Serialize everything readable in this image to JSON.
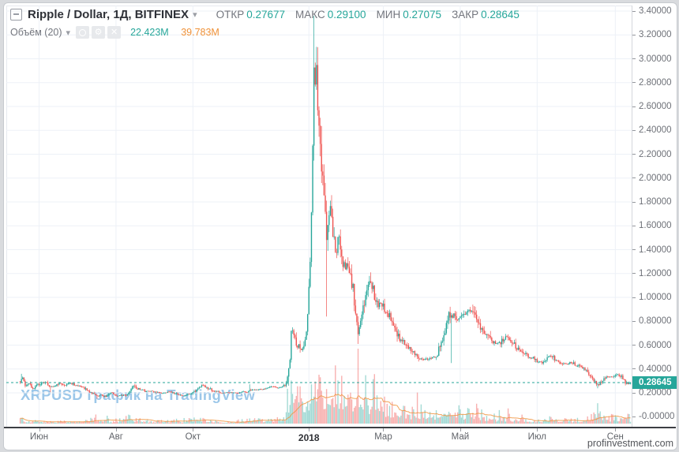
{
  "header": {
    "symbol_title": "Ripple / Dollar, 1Д, BITFINEX",
    "caret": "▾",
    "ohlc": {
      "open_label": "ОТКР",
      "open": "0.27677",
      "high_label": "МАКС",
      "high": "0.29100",
      "low_label": "МИН",
      "low": "0.27075",
      "close_label": "ЗАКР",
      "close": "0.28645"
    },
    "indicator": {
      "name": "Объём (20)",
      "caret": "▾",
      "icons": [
        "eye-icon",
        "gear-icon",
        "close-icon"
      ],
      "gear_glyph": "⚙",
      "close_glyph": "✕",
      "volume_value": "22.423M",
      "ma_value": "39.783M"
    }
  },
  "watermark_text": "XRPUSD график на TradingView",
  "footer_credit": "profinvestment.com",
  "price_scale": {
    "last_price_label": "0.28645",
    "last_price_value": 0.28645,
    "labels": [
      {
        "value": 3.4,
        "label": "3.40000"
      },
      {
        "value": 3.2,
        "label": "3.20000"
      },
      {
        "value": 3.0,
        "label": "3.00000"
      },
      {
        "value": 2.8,
        "label": "2.80000"
      },
      {
        "value": 2.6,
        "label": "2.60000"
      },
      {
        "value": 2.4,
        "label": "2.40000"
      },
      {
        "value": 2.2,
        "label": "2.20000"
      },
      {
        "value": 2.0,
        "label": "2.00000"
      },
      {
        "value": 1.8,
        "label": "1.80000"
      },
      {
        "value": 1.6,
        "label": "1.60000"
      },
      {
        "value": 1.4,
        "label": "1.40000"
      },
      {
        "value": 1.2,
        "label": "1.20000"
      },
      {
        "value": 1.0,
        "label": "1.00000"
      },
      {
        "value": 0.8,
        "label": "0.80000"
      },
      {
        "value": 0.6,
        "label": "0.60000"
      },
      {
        "value": 0.4,
        "label": "0.40000"
      },
      {
        "value": 0.2,
        "label": "0.20000"
      },
      {
        "value": 0.0,
        "label": "-0.00000"
      }
    ]
  },
  "time_scale": {
    "ticks": [
      {
        "label": "Июн",
        "day": 31,
        "bold": false
      },
      {
        "label": "Авг",
        "day": 92,
        "bold": false
      },
      {
        "label": "Окт",
        "day": 153,
        "bold": false
      },
      {
        "label": "2018",
        "day": 245,
        "bold": true
      },
      {
        "label": "Мар",
        "day": 304,
        "bold": false
      },
      {
        "label": "Май",
        "day": 365,
        "bold": false
      },
      {
        "label": "Июл",
        "day": 426,
        "bold": false
      },
      {
        "label": "Сен",
        "day": 488,
        "bold": false
      }
    ]
  },
  "colors": {
    "up": "#26a69a",
    "down": "#ef5350",
    "vol_up": "rgba(38,166,154,0.42)",
    "vol_down": "rgba(239,83,80,0.45)",
    "vol_ma_line": "#f0953f",
    "grid": "#edf1f7",
    "last_price_line": "#26a69a",
    "accent_teal": "#26a69a",
    "accent_orange": "#ef9138"
  },
  "chart_data": {
    "type": "candlestick_with_volume",
    "symbol": "XRPUSD",
    "interval": "1Д",
    "exchange": "BITFINEX",
    "title": "Ripple / Dollar, 1Д, BITFINEX",
    "ylim": [
      0.0,
      3.4
    ],
    "y_step": 0.2,
    "grid": true,
    "x_range_days": [
      0,
      500
    ],
    "first_candle_day": 16,
    "last_candle": {
      "open": 0.27677,
      "high": 0.291,
      "low": 0.27075,
      "close": 0.28645
    },
    "price_keyframes_day_close": [
      [
        16,
        0.3
      ],
      [
        18,
        0.33
      ],
      [
        20,
        0.26
      ],
      [
        23,
        0.28
      ],
      [
        26,
        0.24
      ],
      [
        29,
        0.26
      ],
      [
        31,
        0.27
      ],
      [
        34,
        0.29
      ],
      [
        36,
        0.285
      ],
      [
        40,
        0.25
      ],
      [
        44,
        0.255
      ],
      [
        48,
        0.28
      ],
      [
        52,
        0.26
      ],
      [
        56,
        0.28
      ],
      [
        61,
        0.26
      ],
      [
        66,
        0.25
      ],
      [
        70,
        0.21
      ],
      [
        75,
        0.19
      ],
      [
        78,
        0.17
      ],
      [
        80,
        0.18
      ],
      [
        84,
        0.17
      ],
      [
        88,
        0.205
      ],
      [
        92,
        0.17
      ],
      [
        95,
        0.175
      ],
      [
        100,
        0.185
      ],
      [
        103,
        0.21
      ],
      [
        105,
        0.26
      ],
      [
        108,
        0.24
      ],
      [
        112,
        0.225
      ],
      [
        116,
        0.21
      ],
      [
        120,
        0.215
      ],
      [
        124,
        0.205
      ],
      [
        128,
        0.195
      ],
      [
        135,
        0.21
      ],
      [
        140,
        0.19
      ],
      [
        145,
        0.175
      ],
      [
        150,
        0.19
      ],
      [
        153,
        0.2
      ],
      [
        156,
        0.225
      ],
      [
        160,
        0.26
      ],
      [
        164,
        0.245
      ],
      [
        168,
        0.22
      ],
      [
        172,
        0.21
      ],
      [
        176,
        0.2
      ],
      [
        180,
        0.205
      ],
      [
        184,
        0.2
      ],
      [
        188,
        0.2
      ],
      [
        192,
        0.21
      ],
      [
        196,
        0.205
      ],
      [
        200,
        0.23
      ],
      [
        204,
        0.225
      ],
      [
        208,
        0.23
      ],
      [
        212,
        0.24
      ],
      [
        216,
        0.25
      ],
      [
        220,
        0.24
      ],
      [
        224,
        0.245
      ],
      [
        227,
        0.28
      ],
      [
        229,
        0.42
      ],
      [
        230,
        0.5
      ],
      [
        231,
        0.75
      ],
      [
        233,
        0.7
      ],
      [
        235,
        0.58
      ],
      [
        237,
        0.62
      ],
      [
        239,
        0.56
      ],
      [
        241,
        0.6
      ],
      [
        243,
        0.72
      ],
      [
        244,
        0.85
      ],
      [
        245,
        1.05
      ],
      [
        246,
        1.35
      ],
      [
        247,
        1.75
      ],
      [
        248,
        2.3
      ],
      [
        249,
        3.05
      ],
      [
        250,
        2.75
      ],
      [
        251,
        3.02
      ],
      [
        252,
        2.65
      ],
      [
        253,
        2.48
      ],
      [
        254,
        2.3
      ],
      [
        255,
        2.15
      ],
      [
        256,
        2.05
      ],
      [
        257,
        1.9
      ],
      [
        258,
        1.7
      ],
      [
        259,
        1.52
      ],
      [
        260,
        1.6
      ],
      [
        262,
        1.78
      ],
      [
        264,
        1.55
      ],
      [
        266,
        1.38
      ],
      [
        268,
        1.5
      ],
      [
        270,
        1.4
      ],
      [
        272,
        1.3
      ],
      [
        274,
        1.25
      ],
      [
        276,
        1.28
      ],
      [
        278,
        1.15
      ],
      [
        280,
        1.08
      ],
      [
        282,
        0.85
      ],
      [
        284,
        0.7
      ],
      [
        286,
        0.78
      ],
      [
        288,
        0.9
      ],
      [
        290,
        1.0
      ],
      [
        292,
        1.08
      ],
      [
        294,
        1.12
      ],
      [
        296,
        1.05
      ],
      [
        298,
        0.98
      ],
      [
        300,
        0.92
      ],
      [
        302,
        0.95
      ],
      [
        305,
        0.9
      ],
      [
        308,
        0.86
      ],
      [
        311,
        0.81
      ],
      [
        314,
        0.72
      ],
      [
        317,
        0.66
      ],
      [
        320,
        0.63
      ],
      [
        324,
        0.58
      ],
      [
        328,
        0.54
      ],
      [
        332,
        0.5
      ],
      [
        336,
        0.475
      ],
      [
        340,
        0.49
      ],
      [
        343,
        0.5
      ],
      [
        346,
        0.5
      ],
      [
        348,
        0.57
      ],
      [
        350,
        0.62
      ],
      [
        352,
        0.67
      ],
      [
        354,
        0.78
      ],
      [
        356,
        0.88
      ],
      [
        358,
        0.84
      ],
      [
        360,
        0.86
      ],
      [
        363,
        0.82
      ],
      [
        366,
        0.84
      ],
      [
        369,
        0.87
      ],
      [
        372,
        0.9
      ],
      [
        375,
        0.88
      ],
      [
        378,
        0.81
      ],
      [
        381,
        0.75
      ],
      [
        384,
        0.71
      ],
      [
        387,
        0.68
      ],
      [
        390,
        0.63
      ],
      [
        393,
        0.61
      ],
      [
        396,
        0.615
      ],
      [
        399,
        0.65
      ],
      [
        402,
        0.67
      ],
      [
        405,
        0.64
      ],
      [
        408,
        0.6
      ],
      [
        411,
        0.57
      ],
      [
        414,
        0.55
      ],
      [
        417,
        0.52
      ],
      [
        420,
        0.49
      ],
      [
        423,
        0.5
      ],
      [
        426,
        0.47
      ],
      [
        429,
        0.455
      ],
      [
        432,
        0.48
      ],
      [
        435,
        0.51
      ],
      [
        438,
        0.5
      ],
      [
        441,
        0.47
      ],
      [
        444,
        0.455
      ],
      [
        447,
        0.44
      ],
      [
        450,
        0.445
      ],
      [
        453,
        0.455
      ],
      [
        456,
        0.435
      ],
      [
        459,
        0.425
      ],
      [
        462,
        0.41
      ],
      [
        465,
        0.39
      ],
      [
        467,
        0.36
      ],
      [
        469,
        0.33
      ],
      [
        471,
        0.305
      ],
      [
        473,
        0.28
      ],
      [
        475,
        0.265
      ],
      [
        477,
        0.295
      ],
      [
        479,
        0.325
      ],
      [
        481,
        0.34
      ],
      [
        484,
        0.335
      ],
      [
        487,
        0.34
      ],
      [
        490,
        0.355
      ],
      [
        492,
        0.345
      ],
      [
        494,
        0.315
      ],
      [
        496,
        0.285
      ],
      [
        498,
        0.275
      ],
      [
        500,
        0.28645
      ]
    ],
    "wick_overrides": [
      [
        17,
        "h",
        0.36
      ],
      [
        40,
        "l",
        0.205
      ],
      [
        77,
        "l",
        0.15
      ],
      [
        198,
        "h",
        0.272
      ],
      [
        229,
        "l",
        0.26
      ],
      [
        249,
        "h",
        3.36
      ],
      [
        251,
        "h",
        3.1
      ],
      [
        259,
        "l",
        0.84
      ],
      [
        284,
        "l",
        0.61
      ],
      [
        294,
        "h",
        1.21
      ],
      [
        358,
        "l",
        0.45
      ],
      [
        375,
        "h",
        0.94
      ],
      [
        474,
        "l",
        0.238
      ],
      [
        496,
        "l",
        0.262
      ]
    ],
    "volume_scale": "relative_0_100",
    "volume_keyframes_day_height": [
      [
        16,
        9
      ],
      [
        20,
        5
      ],
      [
        30,
        3
      ],
      [
        60,
        3
      ],
      [
        77,
        7
      ],
      [
        90,
        3
      ],
      [
        104,
        9
      ],
      [
        115,
        4
      ],
      [
        130,
        3
      ],
      [
        145,
        4
      ],
      [
        158,
        7
      ],
      [
        168,
        5
      ],
      [
        180,
        3
      ],
      [
        192,
        4
      ],
      [
        198,
        8
      ],
      [
        210,
        5
      ],
      [
        220,
        7
      ],
      [
        226,
        12
      ],
      [
        228,
        30
      ],
      [
        231,
        60
      ],
      [
        233,
        45
      ],
      [
        235,
        40
      ],
      [
        238,
        42
      ],
      [
        241,
        35
      ],
      [
        243,
        45
      ],
      [
        245,
        55
      ],
      [
        248,
        60
      ],
      [
        251,
        75
      ],
      [
        253,
        88
      ],
      [
        256,
        65
      ],
      [
        260,
        48
      ],
      [
        264,
        42
      ],
      [
        266,
        85
      ],
      [
        270,
        52
      ],
      [
        274,
        40
      ],
      [
        278,
        34
      ],
      [
        283,
        58
      ],
      [
        285,
        68
      ],
      [
        289,
        45
      ],
      [
        293,
        40
      ],
      [
        295,
        48
      ],
      [
        299,
        35
      ],
      [
        303,
        30
      ],
      [
        308,
        26
      ],
      [
        314,
        24
      ],
      [
        320,
        22
      ],
      [
        326,
        18
      ],
      [
        332,
        16
      ],
      [
        338,
        18
      ],
      [
        344,
        16
      ],
      [
        350,
        20
      ],
      [
        354,
        24
      ],
      [
        356,
        26
      ],
      [
        358,
        24
      ],
      [
        361,
        21
      ],
      [
        365,
        17
      ],
      [
        369,
        15
      ],
      [
        372,
        18
      ],
      [
        375,
        16
      ],
      [
        378,
        14
      ],
      [
        384,
        11
      ],
      [
        390,
        9
      ],
      [
        396,
        8
      ],
      [
        400,
        9
      ],
      [
        406,
        7
      ],
      [
        412,
        7
      ],
      [
        418,
        6
      ],
      [
        424,
        5
      ],
      [
        430,
        5
      ],
      [
        436,
        7
      ],
      [
        442,
        6
      ],
      [
        448,
        5
      ],
      [
        454,
        5
      ],
      [
        460,
        6
      ],
      [
        466,
        10
      ],
      [
        470,
        14
      ],
      [
        473,
        18
      ],
      [
        475,
        16
      ],
      [
        478,
        12
      ],
      [
        481,
        9
      ],
      [
        485,
        8
      ],
      [
        489,
        10
      ],
      [
        493,
        7
      ],
      [
        496,
        11
      ],
      [
        500,
        6
      ]
    ]
  }
}
